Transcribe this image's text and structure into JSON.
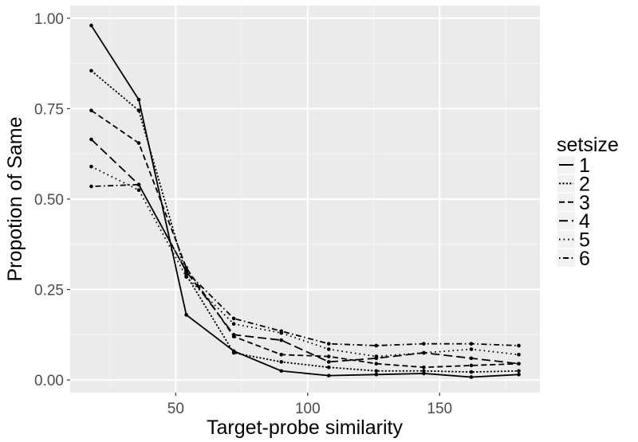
{
  "chart_data": {
    "type": "line",
    "xlabel": "Target-probe similarity",
    "ylabel": "Propotion of Same",
    "xlim": [
      10,
      188
    ],
    "ylim": [
      -0.035,
      1.035
    ],
    "x_ticks": [
      50,
      100,
      150
    ],
    "x_tick_labels": [
      "50",
      "100",
      "150"
    ],
    "y_ticks": [
      0,
      0.25,
      0.5,
      0.75,
      1.0
    ],
    "y_tick_labels": [
      "0.00",
      "0.25",
      "0.50",
      "0.75",
      "1.00"
    ],
    "grid": true,
    "legend": {
      "title": "setsize",
      "position": "right"
    },
    "x": [
      18,
      36,
      54,
      72,
      90,
      108,
      126,
      144,
      162,
      180
    ],
    "series": [
      {
        "name": "1",
        "dash": "solid",
        "values": [
          0.98,
          0.775,
          0.18,
          0.08,
          0.025,
          0.012,
          0.015,
          0.018,
          0.008,
          0.015
        ]
      },
      {
        "name": "2",
        "dash": "dotted-dense",
        "values": [
          0.855,
          0.745,
          0.29,
          0.075,
          0.05,
          0.035,
          0.025,
          0.025,
          0.022,
          0.025
        ]
      },
      {
        "name": "3",
        "dash": "dashed",
        "values": [
          0.745,
          0.655,
          0.31,
          0.12,
          0.07,
          0.065,
          0.045,
          0.035,
          0.04,
          0.045
        ]
      },
      {
        "name": "4",
        "dash": "longdash",
        "values": [
          0.665,
          0.54,
          0.3,
          0.125,
          0.11,
          0.05,
          0.06,
          0.075,
          0.06,
          0.045
        ]
      },
      {
        "name": "5",
        "dash": "dotted",
        "values": [
          0.59,
          0.525,
          0.285,
          0.155,
          0.13,
          0.085,
          0.065,
          0.075,
          0.085,
          0.07
        ]
      },
      {
        "name": "6",
        "dash": "dotdash",
        "values": [
          0.535,
          0.54,
          0.3,
          0.17,
          0.135,
          0.1,
          0.095,
          0.1,
          0.1,
          0.095
        ]
      }
    ]
  }
}
